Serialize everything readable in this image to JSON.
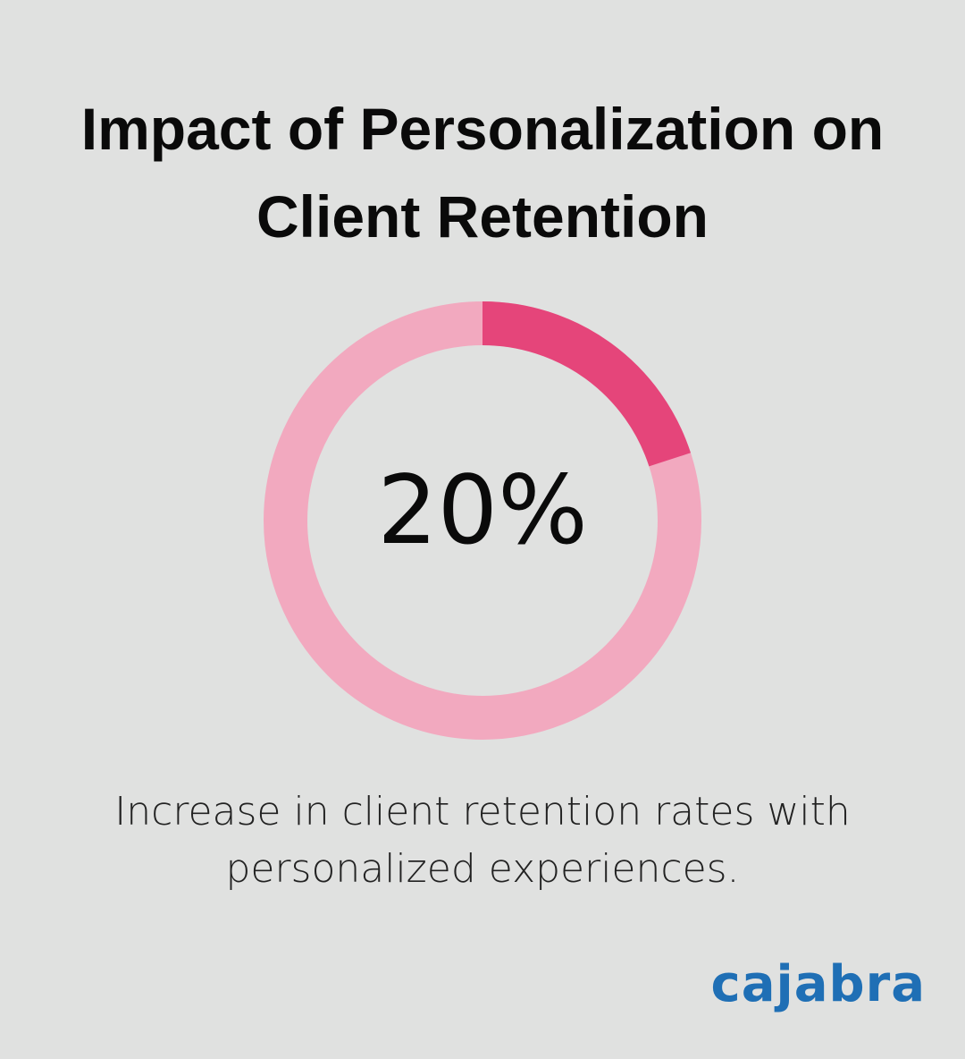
{
  "chart_data": {
    "type": "donut",
    "title": "Impact of Personalization on Client Retention",
    "values": [
      20
    ],
    "value_labels": [
      "20%"
    ],
    "color": "#e5457a",
    "track_color": "#f2a9bf",
    "caption": "Increase in client retention rates with personalized experiences.",
    "brand": "cajabra"
  }
}
